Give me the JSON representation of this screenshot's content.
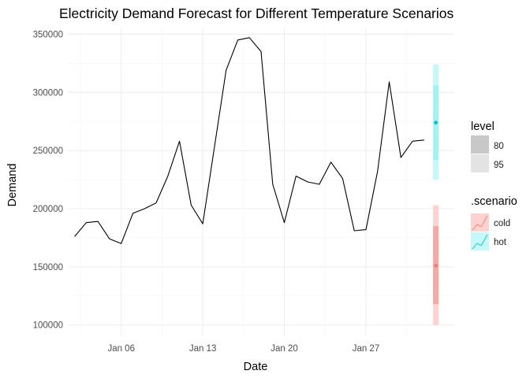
{
  "chart_data": {
    "type": "line",
    "title": "Electricity Demand Forecast for Different Temperature Scenarios",
    "xlabel": "Date",
    "ylabel": "Demand",
    "x_ticks": [
      "Jan 06",
      "Jan 13",
      "Jan 20",
      "Jan 27"
    ],
    "y_ticks": [
      "100000",
      "150000",
      "200000",
      "250000",
      "300000",
      "350000"
    ],
    "ylim": [
      91000,
      355000
    ],
    "xlim": [
      "2024-01-01T10:00",
      "2024-02-03T14:00"
    ],
    "grid": true,
    "history": {
      "name": "Demand",
      "color": "#000000",
      "x": [
        "2024-01-02",
        "2024-01-03",
        "2024-01-04",
        "2024-01-05",
        "2024-01-06",
        "2024-01-07",
        "2024-01-08",
        "2024-01-09",
        "2024-01-10",
        "2024-01-11",
        "2024-01-12",
        "2024-01-13",
        "2024-01-14",
        "2024-01-15",
        "2024-01-16",
        "2024-01-17",
        "2024-01-18",
        "2024-01-19",
        "2024-01-20",
        "2024-01-21",
        "2024-01-22",
        "2024-01-23",
        "2024-01-24",
        "2024-01-25",
        "2024-01-26",
        "2024-01-27",
        "2024-01-28",
        "2024-01-29",
        "2024-01-30",
        "2024-01-31",
        "2024-02-01"
      ],
      "values": [
        176000,
        188000,
        189000,
        174000,
        170000,
        196000,
        200000,
        205000,
        228000,
        258000,
        203000,
        187000,
        253000,
        319000,
        345000,
        347000,
        335000,
        221000,
        188000,
        228000,
        223000,
        221000,
        240000,
        226000,
        181000,
        182000,
        232000,
        309000,
        244000,
        258000,
        259000
      ]
    },
    "forecast": {
      "date": "2024-02-02",
      "scenarios": [
        {
          "name": "hot",
          "color": "#00bfc4",
          "mean": 274000,
          "lower80": 242000,
          "upper80": 306000,
          "lower95": 225000,
          "upper95": 324000
        },
        {
          "name": "cold",
          "color": "#f8766d",
          "mean": 151000,
          "lower80": 118000,
          "upper80": 185000,
          "lower95": 100000,
          "upper95": 203000
        }
      ]
    },
    "legend": {
      "placement": "right",
      "level_title": "level",
      "levels": [
        {
          "label": "80",
          "color": "#c8c8c8"
        },
        {
          "label": "95",
          "color": "#e3e3e3"
        }
      ],
      "scenario_title": ".scenario",
      "scenarios": [
        {
          "label": "cold",
          "fill": "#fdd2cf",
          "line": "#f8766d"
        },
        {
          "label": "hot",
          "fill": "#c4f8f9",
          "line": "#00bfc4"
        }
      ]
    }
  }
}
